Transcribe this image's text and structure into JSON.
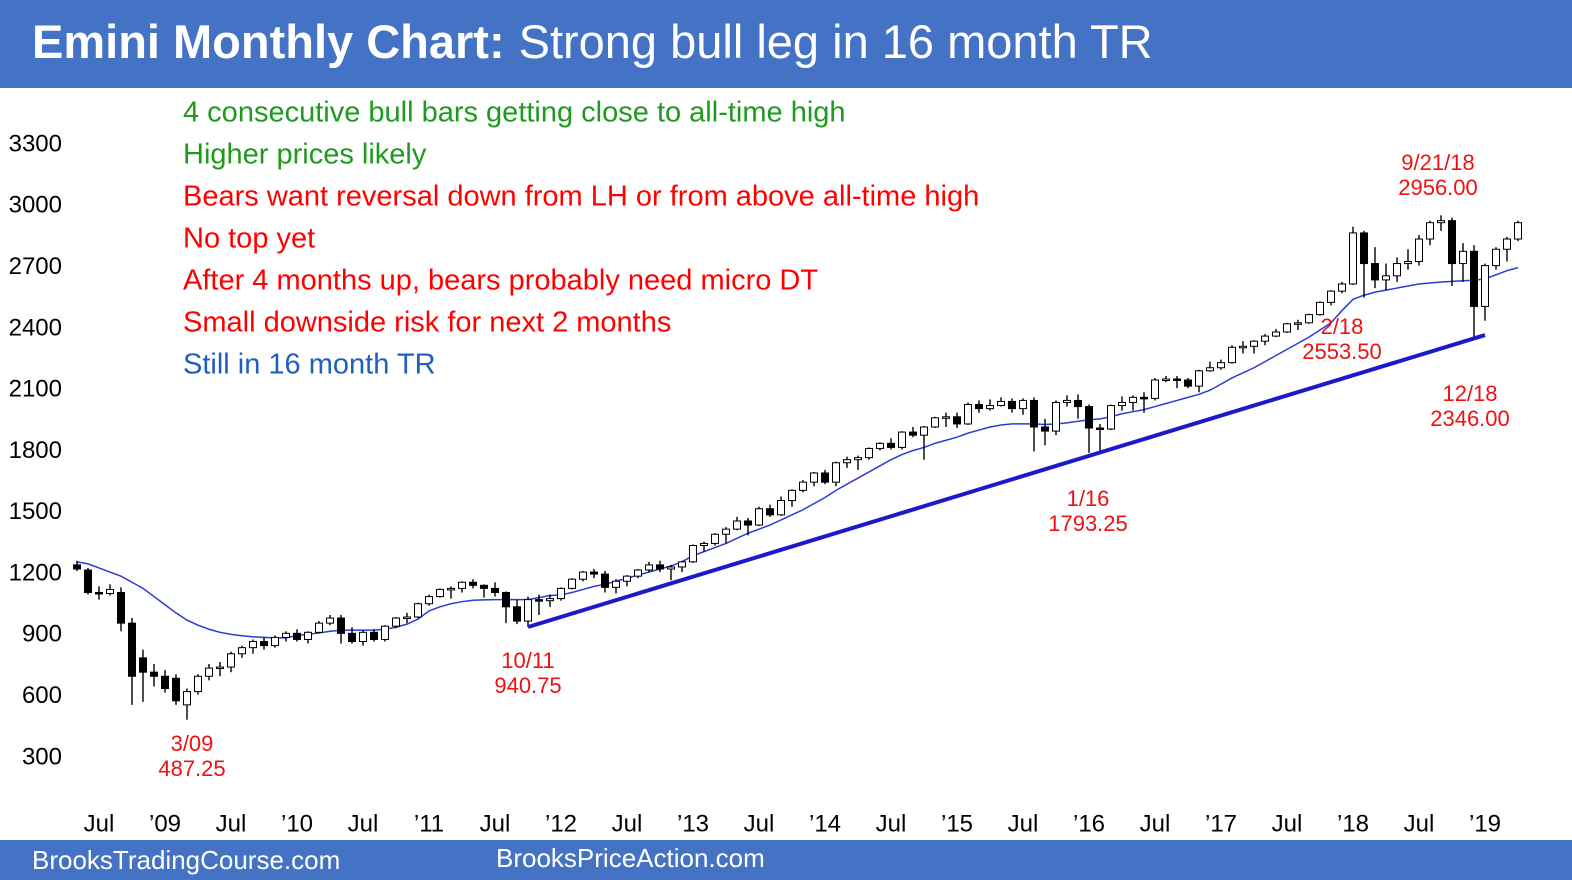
{
  "chart_data": {
    "type": "candlestick",
    "title": "Emini Monthly Chart:",
    "subtitle": "Strong bull leg in 16 month TR",
    "footer": [
      "BrooksTradingCourse.com",
      "BrooksPriceAction.com"
    ],
    "notes": [
      {
        "text": "4 consecutive bull bars getting close to all-time high",
        "color": "#1e9a1e"
      },
      {
        "text": "Higher prices likely",
        "color": "#1e9a1e"
      },
      {
        "text": "Bears want reversal down from LH or from above all-time high",
        "color": "#ff0000"
      },
      {
        "text": "No top yet",
        "color": "#ff0000"
      },
      {
        "text": "After 4 months up, bears probably need micro DT",
        "color": "#ff0000"
      },
      {
        "text": "Small downside risk for next 2 months",
        "color": "#ff0000"
      },
      {
        "text": "Still in 16 month TR",
        "color": "#1f5fbf"
      }
    ],
    "annotations": [
      {
        "date": "3/09",
        "price": "487.25"
      },
      {
        "date": "10/11",
        "price": "940.75"
      },
      {
        "date": "1/16",
        "price": "1793.25"
      },
      {
        "date": "2/18",
        "price": "2553.50"
      },
      {
        "date": "12/18",
        "price": "2346.00"
      },
      {
        "date": "9/21/18",
        "price": "2956.00"
      }
    ],
    "categories": [
      null,
      null,
      "Jul",
      null,
      null,
      null,
      null,
      null,
      "’09",
      null,
      null,
      null,
      null,
      null,
      "Jul",
      null,
      null,
      null,
      null,
      null,
      "’10",
      null,
      null,
      null,
      null,
      null,
      "Jul",
      null,
      null,
      null,
      null,
      null,
      "’11",
      null,
      null,
      null,
      null,
      null,
      "Jul",
      null,
      null,
      null,
      null,
      null,
      "’12",
      null,
      null,
      null,
      null,
      null,
      "Jul",
      null,
      null,
      null,
      null,
      null,
      "’13",
      null,
      null,
      null,
      null,
      null,
      "Jul",
      null,
      null,
      null,
      null,
      null,
      "’14",
      null,
      null,
      null,
      null,
      null,
      "Jul",
      null,
      null,
      null,
      null,
      null,
      "’15",
      null,
      null,
      null,
      null,
      null,
      "Jul",
      null,
      null,
      null,
      null,
      null,
      "’16",
      null,
      null,
      null,
      null,
      null,
      "Jul",
      null,
      null,
      null,
      null,
      null,
      "’17",
      null,
      null,
      null,
      null,
      null,
      "Jul",
      null,
      null,
      null,
      null,
      null,
      "’18",
      null,
      null,
      null,
      null,
      null,
      "Jul",
      null,
      null,
      null,
      null,
      null,
      "’19",
      null,
      null,
      null
    ],
    "ohlc": [
      [
        1245,
        1265,
        1215,
        1225
      ],
      [
        1220,
        1230,
        1100,
        1110
      ],
      [
        1110,
        1140,
        1075,
        1105
      ],
      [
        1105,
        1150,
        1095,
        1125
      ],
      [
        1110,
        1135,
        920,
        960
      ],
      [
        960,
        985,
        560,
        700
      ],
      [
        790,
        830,
        575,
        720
      ],
      [
        720,
        760,
        650,
        700
      ],
      [
        700,
        730,
        620,
        640
      ],
      [
        690,
        710,
        560,
        580
      ],
      [
        560,
        640,
        487.25,
        625
      ],
      [
        625,
        710,
        610,
        700
      ],
      [
        700,
        760,
        680,
        740
      ],
      [
        740,
        770,
        700,
        745
      ],
      [
        745,
        820,
        720,
        810
      ],
      [
        810,
        850,
        790,
        840
      ],
      [
        840,
        880,
        810,
        870
      ],
      [
        870,
        890,
        830,
        850
      ],
      [
        850,
        900,
        840,
        890
      ],
      [
        890,
        920,
        870,
        910
      ],
      [
        910,
        930,
        870,
        880
      ],
      [
        880,
        920,
        860,
        915
      ],
      [
        915,
        970,
        910,
        960
      ],
      [
        960,
        1000,
        950,
        985
      ],
      [
        985,
        1000,
        860,
        910
      ],
      [
        910,
        940,
        860,
        870
      ],
      [
        870,
        925,
        850,
        915
      ],
      [
        915,
        930,
        870,
        880
      ],
      [
        880,
        950,
        870,
        945
      ],
      [
        945,
        990,
        935,
        985
      ],
      [
        985,
        1010,
        960,
        990
      ],
      [
        990,
        1060,
        985,
        1055
      ],
      [
        1055,
        1100,
        1045,
        1090
      ],
      [
        1090,
        1130,
        1085,
        1125
      ],
      [
        1125,
        1140,
        1080,
        1130
      ],
      [
        1130,
        1165,
        1110,
        1160
      ],
      [
        1160,
        1175,
        1130,
        1145
      ],
      [
        1145,
        1150,
        1085,
        1130
      ],
      [
        1130,
        1160,
        1090,
        1110
      ],
      [
        1110,
        1115,
        960,
        1040
      ],
      [
        1040,
        1075,
        955,
        970
      ],
      [
        970,
        1090,
        940.75,
        1075
      ],
      [
        1075,
        1100,
        1000,
        1070
      ],
      [
        1070,
        1100,
        1040,
        1080
      ],
      [
        1080,
        1135,
        1070,
        1130
      ],
      [
        1130,
        1180,
        1125,
        1175
      ],
      [
        1175,
        1215,
        1165,
        1210
      ],
      [
        1210,
        1225,
        1180,
        1200
      ],
      [
        1200,
        1215,
        1110,
        1135
      ],
      [
        1135,
        1175,
        1105,
        1165
      ],
      [
        1165,
        1195,
        1140,
        1190
      ],
      [
        1190,
        1225,
        1180,
        1220
      ],
      [
        1220,
        1260,
        1210,
        1245
      ],
      [
        1245,
        1265,
        1210,
        1225
      ],
      [
        1225,
        1245,
        1170,
        1235
      ],
      [
        1235,
        1265,
        1210,
        1260
      ],
      [
        1260,
        1345,
        1255,
        1340
      ],
      [
        1340,
        1360,
        1310,
        1350
      ],
      [
        1350,
        1400,
        1340,
        1395
      ],
      [
        1395,
        1430,
        1350,
        1420
      ],
      [
        1420,
        1480,
        1415,
        1460
      ],
      [
        1460,
        1475,
        1390,
        1440
      ],
      [
        1440,
        1530,
        1435,
        1520
      ],
      [
        1520,
        1540,
        1480,
        1490
      ],
      [
        1490,
        1580,
        1485,
        1560
      ],
      [
        1560,
        1615,
        1530,
        1610
      ],
      [
        1610,
        1660,
        1600,
        1650
      ],
      [
        1650,
        1700,
        1630,
        1695
      ],
      [
        1695,
        1710,
        1640,
        1650
      ],
      [
        1650,
        1750,
        1630,
        1745
      ],
      [
        1745,
        1775,
        1720,
        1760
      ],
      [
        1760,
        1780,
        1710,
        1770
      ],
      [
        1770,
        1820,
        1760,
        1815
      ],
      [
        1815,
        1845,
        1805,
        1840
      ],
      [
        1840,
        1865,
        1810,
        1820
      ],
      [
        1820,
        1900,
        1810,
        1895
      ],
      [
        1895,
        1920,
        1870,
        1880
      ],
      [
        1880,
        1925,
        1760,
        1920
      ],
      [
        1920,
        1970,
        1915,
        1965
      ],
      [
        1965,
        1990,
        1920,
        1970
      ],
      [
        1970,
        1990,
        1915,
        1935
      ],
      [
        1935,
        2040,
        1930,
        2030
      ],
      [
        2030,
        2050,
        1990,
        2010
      ],
      [
        2010,
        2055,
        2000,
        2025
      ],
      [
        2025,
        2065,
        2020,
        2045
      ],
      [
        2045,
        2060,
        1990,
        2010
      ],
      [
        2010,
        2060,
        1980,
        2050
      ],
      [
        2050,
        2065,
        1800,
        1920
      ],
      [
        1920,
        1960,
        1830,
        1900
      ],
      [
        1900,
        2050,
        1880,
        2040
      ],
      [
        2040,
        2075,
        2020,
        2050
      ],
      [
        2050,
        2080,
        1960,
        2020
      ],
      [
        2020,
        2030,
        1793.25,
        1915
      ],
      [
        1915,
        1935,
        1800,
        1910
      ],
      [
        1910,
        2030,
        1905,
        2025
      ],
      [
        2025,
        2070,
        2000,
        2040
      ],
      [
        2040,
        2075,
        2000,
        2065
      ],
      [
        2065,
        2090,
        1990,
        2060
      ],
      [
        2060,
        2160,
        2050,
        2150
      ],
      [
        2150,
        2170,
        2140,
        2155
      ],
      [
        2155,
        2170,
        2110,
        2150
      ],
      [
        2150,
        2160,
        2110,
        2120
      ],
      [
        2120,
        2200,
        2090,
        2195
      ],
      [
        2195,
        2240,
        2190,
        2210
      ],
      [
        2210,
        2250,
        2200,
        2235
      ],
      [
        2235,
        2320,
        2230,
        2310
      ],
      [
        2310,
        2340,
        2280,
        2315
      ],
      [
        2315,
        2345,
        2280,
        2340
      ],
      [
        2340,
        2375,
        2320,
        2365
      ],
      [
        2365,
        2400,
        2360,
        2385
      ],
      [
        2385,
        2430,
        2380,
        2425
      ],
      [
        2425,
        2445,
        2395,
        2430
      ],
      [
        2430,
        2475,
        2425,
        2470
      ],
      [
        2470,
        2535,
        2465,
        2530
      ],
      [
        2530,
        2590,
        2515,
        2585
      ],
      [
        2585,
        2630,
        2575,
        2620
      ],
      [
        2620,
        2900,
        2615,
        2870
      ],
      [
        2870,
        2880,
        2553.5,
        2720
      ],
      [
        2720,
        2800,
        2600,
        2640
      ],
      [
        2640,
        2720,
        2590,
        2660
      ],
      [
        2660,
        2750,
        2630,
        2720
      ],
      [
        2720,
        2790,
        2690,
        2730
      ],
      [
        2730,
        2860,
        2710,
        2840
      ],
      [
        2840,
        2930,
        2810,
        2920
      ],
      [
        2920,
        2956,
        2880,
        2930
      ],
      [
        2930,
        2945,
        2610,
        2720
      ],
      [
        2720,
        2820,
        2630,
        2780
      ],
      [
        2780,
        2810,
        2346,
        2510
      ],
      [
        2510,
        2720,
        2440,
        2710
      ],
      [
        2710,
        2800,
        2690,
        2790
      ],
      [
        2790,
        2850,
        2730,
        2840
      ],
      [
        2840,
        2930,
        2830,
        2920
      ]
    ],
    "up_color": "#ffffff",
    "down_color": "#000000",
    "moving_average": {
      "color": "#2b3bd6",
      "values": [
        1260,
        1250,
        1230,
        1210,
        1190,
        1160,
        1130,
        1090,
        1050,
        1010,
        975,
        950,
        930,
        915,
        905,
        898,
        893,
        890,
        888,
        888,
        900,
        905,
        912,
        920,
        925,
        926,
        926,
        926,
        930,
        940,
        955,
        980,
        1020,
        1040,
        1055,
        1065,
        1072,
        1074,
        1075,
        1075,
        1075,
        1075,
        1085,
        1095,
        1098,
        1110,
        1125,
        1140,
        1150,
        1165,
        1180,
        1195,
        1210,
        1225,
        1240,
        1260,
        1290,
        1310,
        1330,
        1350,
        1375,
        1400,
        1420,
        1440,
        1465,
        1490,
        1515,
        1545,
        1575,
        1610,
        1640,
        1670,
        1700,
        1730,
        1760,
        1785,
        1805,
        1820,
        1840,
        1855,
        1870,
        1890,
        1905,
        1920,
        1930,
        1935,
        1935,
        1935,
        1932,
        1935,
        1940,
        1948,
        1955,
        1960,
        1970,
        1985,
        1995,
        2005,
        2020,
        2035,
        2050,
        2065,
        2080,
        2100,
        2130,
        2160,
        2185,
        2210,
        2240,
        2270,
        2300,
        2330,
        2360,
        2395,
        2430,
        2490,
        2545,
        2565,
        2580,
        2590,
        2600,
        2610,
        2620,
        2625,
        2630,
        2633,
        2636,
        2638,
        2645,
        2665,
        2685,
        2700
      ]
    },
    "trendline": {
      "x": [
        41,
        128
      ],
      "values": [
        941,
        2370
      ],
      "color": "#1a1acc"
    },
    "ylim": [
      -77,
      3545
    ],
    "yticks": [
      300,
      600,
      900,
      1200,
      1500,
      1800,
      2100,
      2400,
      2700,
      3000,
      3300
    ],
    "grid": false,
    "header_color": "#4472c4"
  }
}
